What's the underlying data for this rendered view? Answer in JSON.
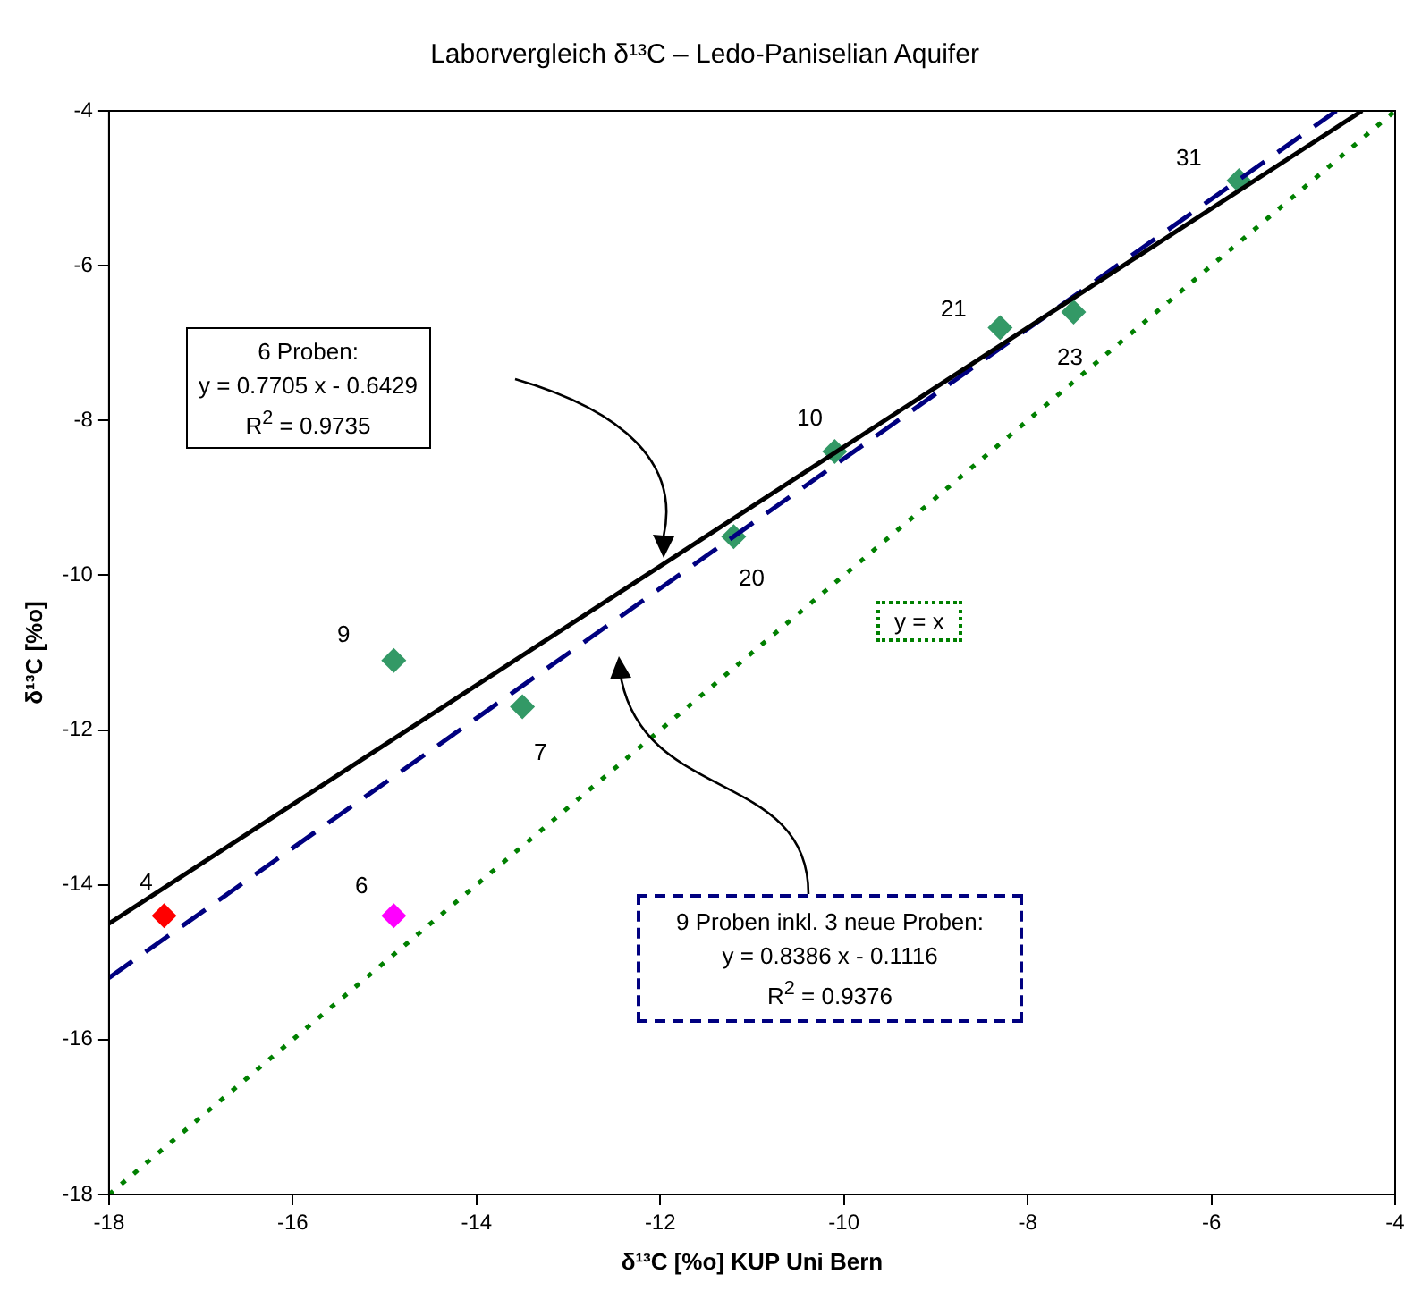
{
  "chart_data": {
    "type": "scatter",
    "title": "Laborvergleich δ¹³C – Ledo-Paniselian Aquifer",
    "xlabel": "δ¹³C [%o] KUP Uni Bern",
    "ylabel": "δ¹³C [%o]",
    "xlim": [
      -18,
      -4
    ],
    "xticks": [
      -18,
      -16,
      -14,
      -12,
      -10,
      -8,
      -6,
      -4
    ],
    "ylim": [
      -18,
      -4
    ],
    "yticks": [
      -18,
      -16,
      -14,
      -12,
      -10,
      -8,
      -6,
      -4
    ],
    "grid": false,
    "legend": false,
    "series": [
      {
        "type": "scatter",
        "marker": "diamond",
        "x": [
          -5.7,
          -8.3,
          -7.5,
          -10.1,
          -11.2,
          -14.9,
          -13.5,
          -17.4,
          -14.9
        ],
        "values": [
          -4.9,
          -6.8,
          -6.6,
          -8.4,
          -9.5,
          -11.1,
          -11.7,
          -14.4,
          -14.4
        ],
        "colors": [
          "#339966",
          "#339966",
          "#339966",
          "#339966",
          "#339966",
          "#339966",
          "#339966",
          "#ff0000",
          "#ff00ff"
        ]
      },
      {
        "type": "line",
        "marker": "none",
        "line_style": "solid",
        "color": "#000000",
        "x": [
          -18,
          -4.36
        ],
        "values": [
          -14.5,
          -4
        ]
      },
      {
        "type": "line",
        "marker": "none",
        "line_style": "dashed",
        "color": "#000080",
        "x": [
          -18,
          -4.64
        ],
        "values": [
          -15.2,
          -4
        ]
      },
      {
        "type": "line",
        "marker": "none",
        "line_style": "dotted",
        "color": "#008000",
        "x": [
          -18,
          -4
        ],
        "values": [
          -18,
          -4
        ]
      }
    ],
    "annotations": [
      "6 Proben:\ny = 0.7705 x - 0.6429\nR$^{2}$ = 0.9735",
      "9 Proben inkl. 3 neue Proben:\ny = 0.8386 x - 0.1116\nR$^{2}$ = 0.9376",
      "y = x",
      {
        "text": "31",
        "x": -5.7,
        "y": -4.9
      },
      {
        "text": "21",
        "x": -8.3,
        "y": -6.8
      },
      {
        "text": "23",
        "x": -7.5,
        "y": -6.6
      },
      {
        "text": "10",
        "x": -10.1,
        "y": -8.4
      },
      {
        "text": "20",
        "x": -11.2,
        "y": -9.5
      },
      {
        "text": "9",
        "x": -14.9,
        "y": -11.1
      },
      {
        "text": "7",
        "x": -13.5,
        "y": -11.7
      },
      {
        "text": "4",
        "x": -17.4,
        "y": -14.4
      },
      {
        "text": "6",
        "x": -14.9,
        "y": -14.4
      }
    ]
  }
}
